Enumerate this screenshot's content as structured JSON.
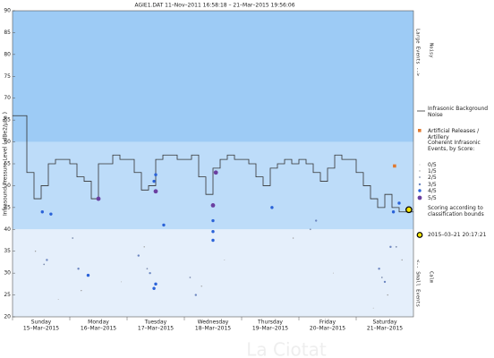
{
  "chart_data": {
    "type": "step",
    "title": "AGIE1.DAT   11–Nov–2011 16:58:18  –  21–Mar–2015 19:56:06",
    "y_label": "Infrasound Pressure Level  ( dBe2/μPa )",
    "categories": [
      "Sunday",
      "Monday",
      "Tuesday",
      "Wednesday",
      "Thursday",
      "Friday",
      "Saturday"
    ],
    "category_dates": [
      "15–Mar–2015",
      "16–Mar–2015",
      "17–Mar–2015",
      "18–Mar–2015",
      "19–Mar–2015",
      "20–Mar–2015",
      "21–Mar–2015"
    ],
    "xlim": [
      0,
      7
    ],
    "ylim": [
      20,
      90
    ],
    "yticks": [
      20,
      25,
      30,
      35,
      40,
      45,
      50,
      55,
      60,
      65,
      70,
      75,
      80,
      85,
      90
    ],
    "grid": false,
    "bands": [
      {
        "from": 60,
        "to": 90,
        "color": "#9dcbf5"
      },
      {
        "from": 40,
        "to": 60,
        "color": "#bddcf9"
      },
      {
        "from": 20,
        "to": 40,
        "color": "#e5effb"
      }
    ],
    "side_notes": {
      "top": "Large Events  -->",
      "top_sub": "Noisy",
      "bottom": "<--  Small Events",
      "bottom_sub": "Calm"
    },
    "legend_title": "Coherent Infrasonic Events, by Score:",
    "scoring_note": "Scoring according to classification bounds",
    "watermark": "La Ciotat",
    "series": [
      {
        "name": "Infrasonic Background Noise",
        "color": "#333333",
        "marker": "step",
        "x": [
          0,
          0.125,
          0.25,
          0.375,
          0.5,
          0.625,
          0.75,
          0.875,
          1,
          1.125,
          1.25,
          1.375,
          1.5,
          1.625,
          1.75,
          1.875,
          2,
          2.125,
          2.25,
          2.375,
          2.5,
          2.625,
          2.75,
          2.875,
          3,
          3.125,
          3.25,
          3.375,
          3.5,
          3.625,
          3.75,
          3.875,
          4,
          4.125,
          4.25,
          4.375,
          4.5,
          4.625,
          4.75,
          4.875,
          5,
          5.125,
          5.25,
          5.375,
          5.5,
          5.625,
          5.75,
          5.875,
          6,
          6.125,
          6.25,
          6.375,
          6.5,
          6.625,
          6.75,
          6.875
        ],
        "values": [
          66,
          66,
          53,
          47,
          50,
          55,
          56,
          56,
          55,
          52,
          51,
          47,
          55,
          55,
          57,
          56,
          56,
          53,
          49,
          50,
          56,
          57,
          57,
          56,
          56,
          57,
          52,
          48,
          54,
          56,
          57,
          56,
          56,
          55,
          52,
          50,
          54,
          55,
          56,
          55,
          56,
          55,
          53,
          51,
          54,
          57,
          56,
          56,
          53,
          50,
          47,
          45,
          48,
          45,
          44,
          44
        ]
      },
      {
        "name": "Artificial Releases / Artillery",
        "color": "#e07a30",
        "marker": "square",
        "x": [
          6.67
        ],
        "values": [
          54.5
        ]
      },
      {
        "name": "0/5",
        "color": "#b0b0b0",
        "marker": "dot",
        "x": [
          0.8,
          1.9,
          3.7,
          5.6,
          6.3
        ],
        "values": [
          24,
          28,
          33,
          30,
          22
        ]
      },
      {
        "name": "1/5",
        "color": "#9a9a9a",
        "marker": "dot",
        "x": [
          0.4,
          1.2,
          2.3,
          3.3,
          4.9,
          6.55,
          6.8
        ],
        "values": [
          35,
          26,
          36,
          27,
          38,
          25,
          33
        ]
      },
      {
        "name": "2/5",
        "color": "#8090b0",
        "marker": "dot",
        "x": [
          0.55,
          1.05,
          2.35,
          3.1,
          5.2,
          6.45,
          6.7
        ],
        "values": [
          32,
          38,
          31,
          29,
          40,
          29,
          36
        ]
      },
      {
        "name": "3/5",
        "color": "#6c86c0",
        "marker": "dot",
        "x": [
          0.6,
          1.15,
          2.2,
          2.4,
          3.2,
          5.3,
          6.4,
          6.5,
          6.6
        ],
        "values": [
          33,
          31,
          34,
          30,
          25,
          42,
          31,
          28,
          36
        ]
      },
      {
        "name": "4/5",
        "color": "#2a62d8",
        "marker": "dot",
        "x": [
          0.52,
          0.67,
          2.5,
          2.47,
          2.64,
          3.5,
          3.5,
          3.5,
          4.53,
          6.65,
          6.75,
          2.5,
          2.47,
          1.32
        ],
        "values": [
          44,
          43.5,
          52.5,
          51,
          41,
          42,
          39.5,
          37.5,
          45,
          44,
          46,
          27.5,
          26.5,
          29.5
        ]
      },
      {
        "name": "5/5",
        "color": "#6b3fa0",
        "marker": "dot",
        "x": [
          1.5,
          2.5,
          3.5,
          3.55
        ],
        "values": [
          47,
          48.7,
          45.5,
          53
        ]
      }
    ],
    "highlight": {
      "label": "2015–03–21 20:17:21",
      "x": 6.92,
      "value": 44.5,
      "color": "#f5e600"
    }
  }
}
